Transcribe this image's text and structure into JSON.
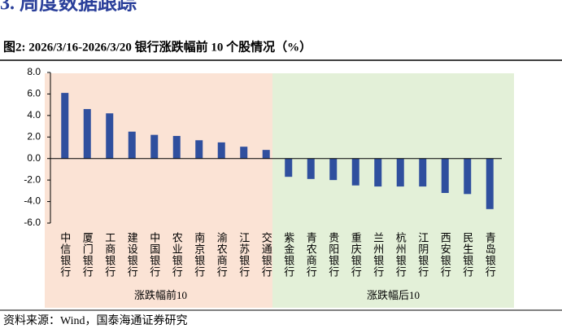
{
  "section_heading": "3. 周度数据跟踪",
  "chart_data": {
    "type": "bar",
    "title": "图2:  2026/3/16-2026/3/20 银行涨跌幅前 10 个股情况（%）",
    "source": "资料来源：Wind，国泰海通证券研究",
    "categories": [
      "中信银行",
      "厦门银行",
      "工商银行",
      "建设银行",
      "中国银行",
      "农业银行",
      "南京银行",
      "渝农商行",
      "江苏银行",
      "交通银行",
      "紫金银行",
      "青农商行",
      "贵阳银行",
      "重庆银行",
      "兰州银行",
      "杭州银行",
      "江阴银行",
      "西安银行",
      "民生银行",
      "青岛银行"
    ],
    "values": [
      6.1,
      4.6,
      4.2,
      2.5,
      2.2,
      2.1,
      1.7,
      1.5,
      1.1,
      0.8,
      -1.7,
      -1.9,
      -2.0,
      -2.5,
      -2.6,
      -2.6,
      -2.6,
      -3.2,
      -3.3,
      -4.7
    ],
    "color": "#2f4f9e",
    "ylim": [
      -6,
      8
    ],
    "yticks": [
      {
        "value": -6,
        "label": "-6.0"
      },
      {
        "value": -4,
        "label": "-4.0"
      },
      {
        "value": -2,
        "label": "-2.0"
      },
      {
        "value": 0,
        "label": "0.0"
      },
      {
        "value": 2,
        "label": "2.0"
      },
      {
        "value": 4,
        "label": "4.0"
      },
      {
        "value": 6,
        "label": "6.0"
      },
      {
        "value": 8,
        "label": "8.0"
      }
    ],
    "grid": false,
    "groups": [
      {
        "label": "涨跌幅前10",
        "color": "#fbe3d5"
      },
      {
        "label": "涨跌幅后10",
        "color": "#e3f0d8"
      }
    ]
  }
}
